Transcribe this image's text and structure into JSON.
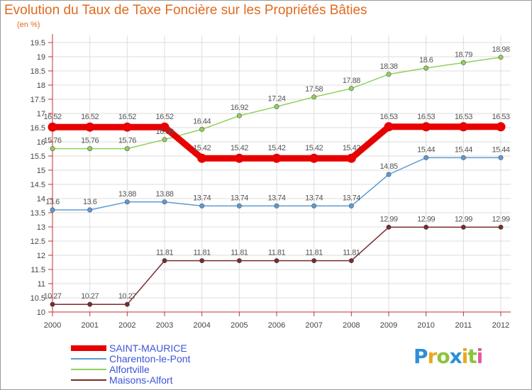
{
  "chart_data": {
    "type": "line",
    "title": "Evolution du Taux de Taxe Foncière sur les Propriétés Bâties",
    "subtitle": "(en %)",
    "x": [
      "2000",
      "2001",
      "2002",
      "2003",
      "2004",
      "2005",
      "2006",
      "2007",
      "2008",
      "2009",
      "2010",
      "2011",
      "2012"
    ],
    "ylim": [
      10,
      19.5
    ],
    "yticks": [
      "10",
      "10.5",
      "11",
      "11.5",
      "12",
      "12.5",
      "13",
      "13.5",
      "14",
      "14.5",
      "15",
      "15.5",
      "16",
      "16.5",
      "17",
      "17.5",
      "18",
      "18.5",
      "19",
      "19.5"
    ],
    "grid": true,
    "legend_position": "bottom-left",
    "series": [
      {
        "name": "SAINT-MAURICE",
        "color": "#e80000",
        "values": [
          16.52,
          16.52,
          16.52,
          16.52,
          15.42,
          15.42,
          15.42,
          15.42,
          15.42,
          16.53,
          16.53,
          16.53,
          16.53
        ],
        "labels": [
          "16.52",
          "16.52",
          "16.52",
          "16.52",
          "15.42",
          "15.42",
          "15.42",
          "15.42",
          "15.42",
          "16.53",
          "16.53",
          "16.53",
          "16.53"
        ]
      },
      {
        "name": "Charenton-le-Pont",
        "color": "#5b9bd5",
        "values": [
          13.6,
          13.6,
          13.88,
          13.88,
          13.74,
          13.74,
          13.74,
          13.74,
          13.74,
          14.85,
          15.44,
          15.44,
          15.44
        ],
        "labels": [
          "13.6",
          "13.6",
          "13.88",
          "13.88",
          "13.74",
          "13.74",
          "13.74",
          "13.74",
          "13.74",
          "14.85",
          "15.44",
          "15.44",
          "15.44"
        ]
      },
      {
        "name": "Alfortville",
        "color": "#8fd05a",
        "values": [
          15.76,
          15.76,
          15.76,
          16.08,
          16.44,
          16.92,
          17.24,
          17.58,
          17.88,
          18.38,
          18.6,
          18.79,
          18.98
        ],
        "labels": [
          "15.76",
          "15.76",
          "15.76",
          "16.08",
          "16.44",
          "16.92",
          "17.24",
          "17.58",
          "17.88",
          "18.38",
          "18.6",
          "18.79",
          "18.98"
        ]
      },
      {
        "name": "Maisons-Alfort",
        "color": "#7a2a2a",
        "values": [
          10.27,
          10.27,
          10.27,
          11.81,
          11.81,
          11.81,
          11.81,
          11.81,
          11.81,
          12.99,
          12.99,
          12.99,
          12.99
        ],
        "labels": [
          "10.27",
          "10.27",
          "10.27",
          "11.81",
          "11.81",
          "11.81",
          "11.81",
          "11.81",
          "11.81",
          "12.99",
          "12.99",
          "12.99",
          "12.99"
        ]
      }
    ]
  },
  "logo": {
    "letters": [
      "P",
      "r",
      "o",
      "x",
      "i",
      "t",
      "i"
    ],
    "colors": [
      "#2e8fd8",
      "#e8a820",
      "#8bc43a",
      "#2e8fd8",
      "#e8a820",
      "#8bc43a",
      "#e05a9a"
    ]
  }
}
